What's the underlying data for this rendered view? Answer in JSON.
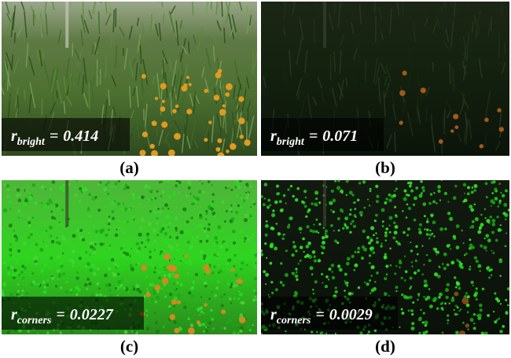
{
  "panels": [
    {
      "label": "(a)",
      "equation": {
        "symbol": "r",
        "subscript": "bright",
        "relation": "=",
        "value": 0.414
      }
    },
    {
      "label": "(b)",
      "equation": {
        "symbol": "r",
        "subscript": "bright",
        "relation": "=",
        "value": 0.071
      }
    },
    {
      "label": "(c)",
      "equation": {
        "symbol": "r",
        "subscript": "corners",
        "relation": "=",
        "value": 0.0227
      }
    },
    {
      "label": "(d)",
      "equation": {
        "symbol": "r",
        "subscript": "corners",
        "relation": "=",
        "value": 0.0029
      }
    }
  ]
}
